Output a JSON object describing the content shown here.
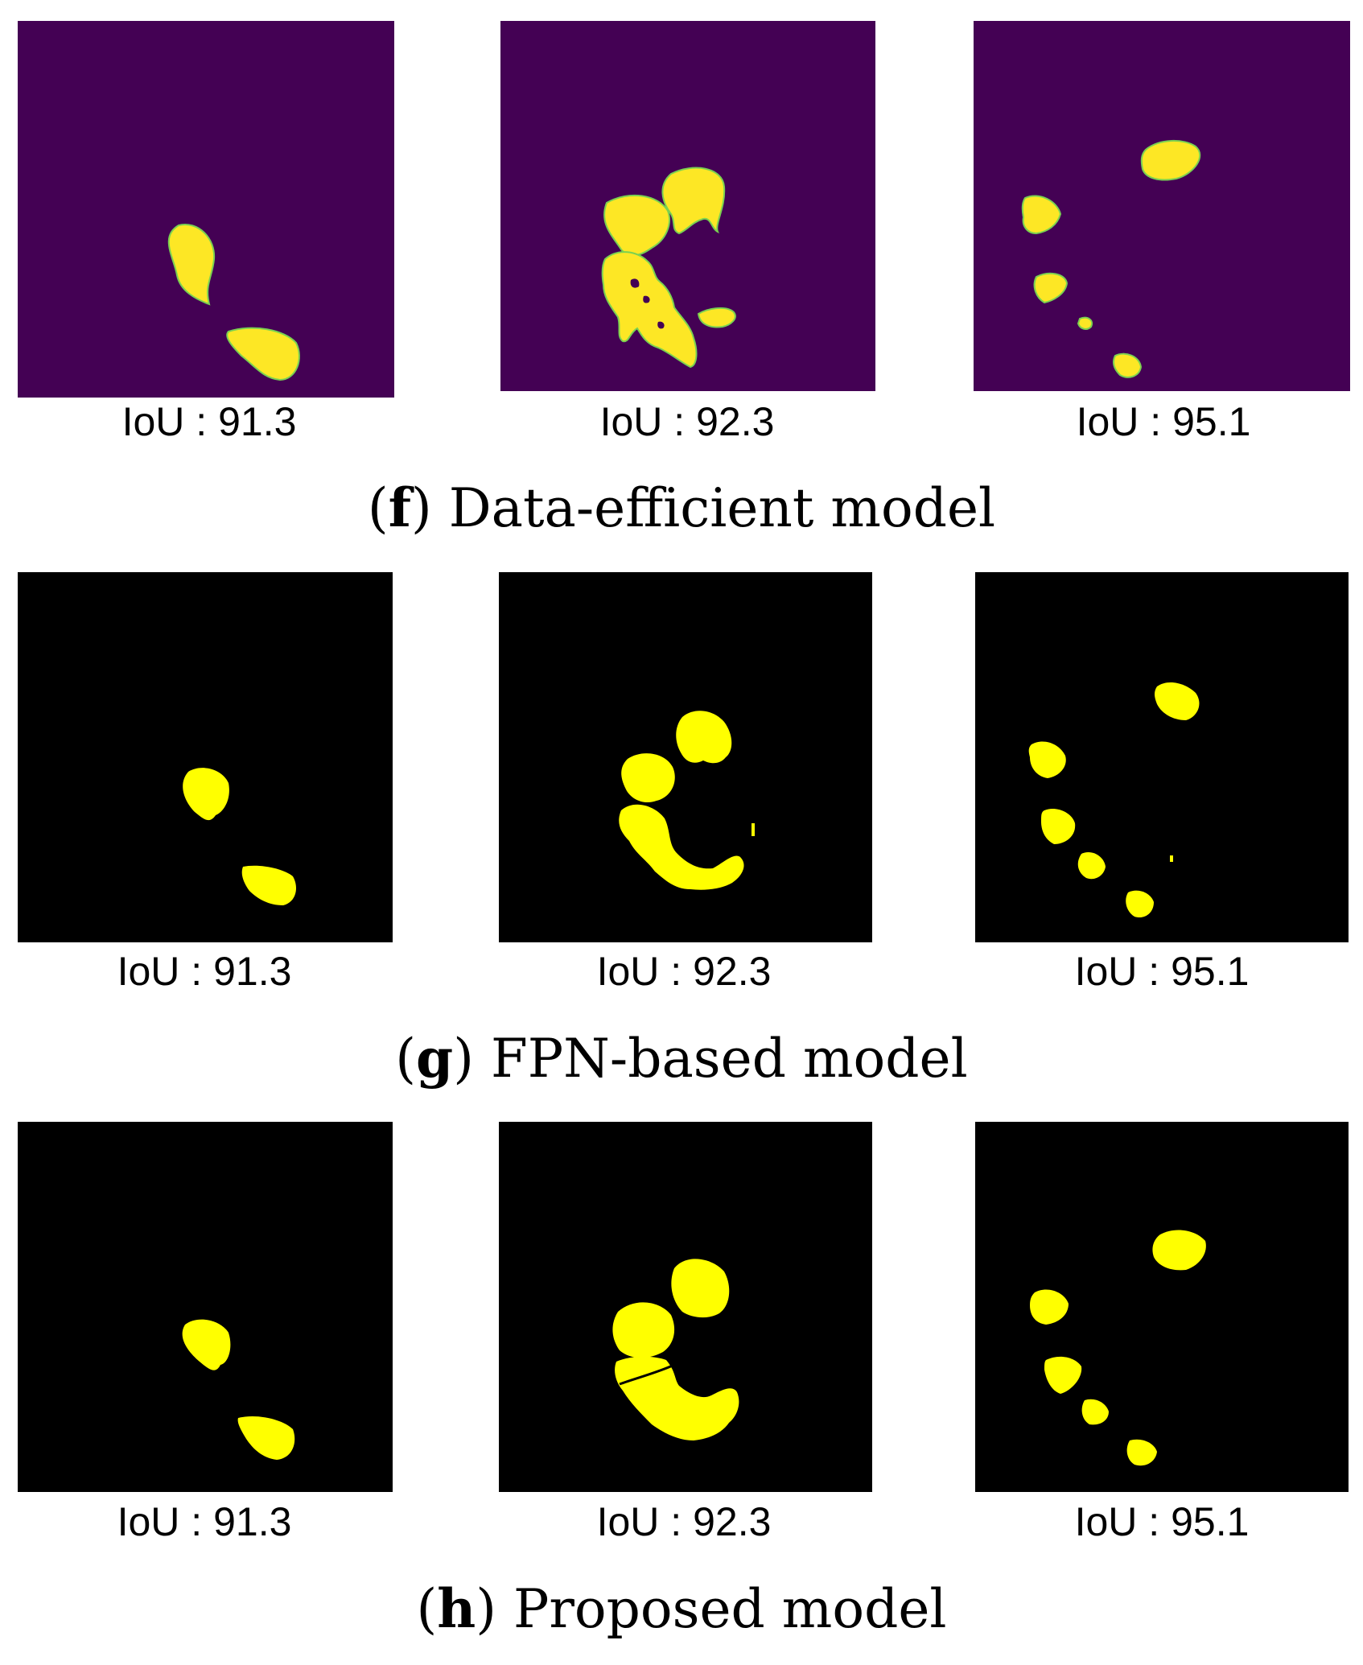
{
  "colors": {
    "viridis_background": "#440154",
    "viridis_foreground": "#fde725",
    "binary_background": "#000000",
    "binary_foreground": "#ffff00"
  },
  "rows": [
    {
      "letter": "f",
      "title": "Data-efficient model",
      "iou_label": "IoU",
      "iou_sep": ":",
      "scores": [
        "91.3",
        "92.3",
        "95.1"
      ]
    },
    {
      "letter": "g",
      "title": "FPN-based model",
      "iou_label": "IoU",
      "iou_sep": ":",
      "scores": [
        "91.3",
        "92.3",
        "95.1"
      ]
    },
    {
      "letter": "h",
      "title": "Proposed model",
      "iou_label": "IoU",
      "iou_sep": ":",
      "scores": [
        "91.3",
        "92.3",
        "95.1"
      ]
    }
  ]
}
